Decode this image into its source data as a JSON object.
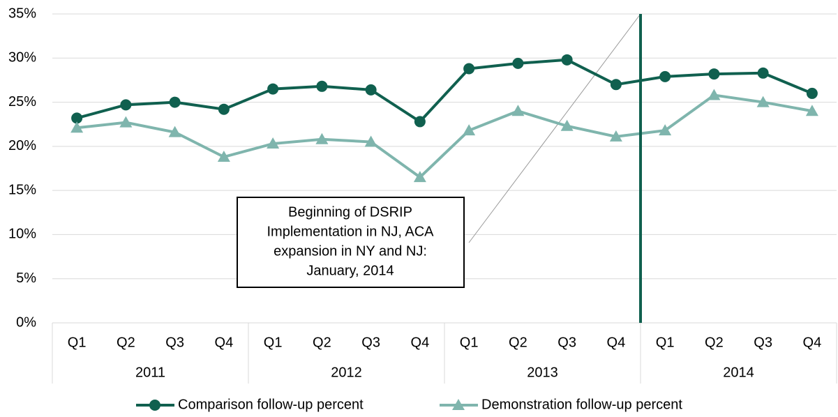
{
  "chart_data": {
    "type": "line",
    "categories": [
      "Q1",
      "Q2",
      "Q3",
      "Q4",
      "Q1",
      "Q2",
      "Q3",
      "Q4",
      "Q1",
      "Q2",
      "Q3",
      "Q4",
      "Q1",
      "Q2",
      "Q3",
      "Q4"
    ],
    "category_groups": [
      "2011",
      "2012",
      "2013",
      "2014"
    ],
    "series": [
      {
        "name": "Comparison follow-up percent",
        "color": "#10604f",
        "marker": "circle",
        "values": [
          23.2,
          24.7,
          25.0,
          24.2,
          26.5,
          26.8,
          26.4,
          22.8,
          28.8,
          29.4,
          29.8,
          27.0,
          27.9,
          28.2,
          28.3,
          26.0
        ]
      },
      {
        "name": "Demonstration follow-up percent",
        "color": "#7fb5ad",
        "marker": "triangle",
        "values": [
          22.1,
          22.7,
          21.6,
          18.8,
          20.3,
          20.8,
          20.5,
          16.5,
          21.8,
          24.0,
          22.3,
          21.1,
          21.8,
          25.8,
          25.0,
          24.0
        ]
      }
    ],
    "ylim": [
      0,
      35
    ],
    "yticks": [
      {
        "value": 0,
        "label": "0%"
      },
      {
        "value": 5,
        "label": "5%"
      },
      {
        "value": 10,
        "label": "10%"
      },
      {
        "value": 15,
        "label": "15%"
      },
      {
        "value": 20,
        "label": "20%"
      },
      {
        "value": 25,
        "label": "25%"
      },
      {
        "value": 30,
        "label": "30%"
      },
      {
        "value": 35,
        "label": "35%"
      }
    ],
    "grid": true,
    "legend": "bottom",
    "annotation": {
      "lines": [
        "Beginning of DSRIP",
        "Implementation in NJ, ACA",
        "expansion in NY and NJ:",
        "January, 2014"
      ],
      "color": "#10604f"
    }
  }
}
